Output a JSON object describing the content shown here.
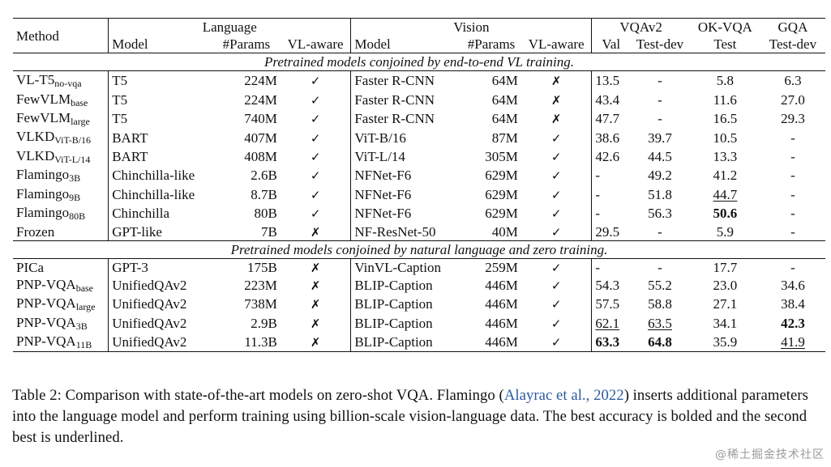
{
  "headers": {
    "method": "Method",
    "language": "Language",
    "vision": "Vision",
    "vqav2": "VQAv2",
    "okvqa": "OK-VQA",
    "gqa": "GQA",
    "lang_model": "Model",
    "lang_params": "#Params",
    "lang_vl": "VL-aware",
    "vis_model": "Model",
    "vis_params": "#Params",
    "vis_vl": "VL-aware",
    "vqav2_val": "Val",
    "vqav2_testdev": "Test-dev",
    "okvqa_test": "Test",
    "gqa_testdev": "Test-dev"
  },
  "sections": [
    {
      "title": "Pretrained models conjoined by end-to-end VL training.",
      "rows": [
        {
          "method": "VL-T5",
          "method_sub": "no-vqa",
          "lang_model": "T5",
          "lang_params": "224M",
          "lang_vl": "✓",
          "vis_model": "Faster R-CNN",
          "vis_params": "64M",
          "vis_vl": "✗",
          "vqav2_val": "13.5",
          "vqav2_testdev": "-",
          "okvqa": "5.8",
          "gqa": "6.3"
        },
        {
          "method": "FewVLM",
          "method_sub": "base",
          "lang_model": "T5",
          "lang_params": "224M",
          "lang_vl": "✓",
          "vis_model": "Faster R-CNN",
          "vis_params": "64M",
          "vis_vl": "✗",
          "vqav2_val": "43.4",
          "vqav2_testdev": "-",
          "okvqa": "11.6",
          "gqa": "27.0"
        },
        {
          "method": "FewVLM",
          "method_sub": "large",
          "lang_model": "T5",
          "lang_params": "740M",
          "lang_vl": "✓",
          "vis_model": "Faster R-CNN",
          "vis_params": "64M",
          "vis_vl": "✗",
          "vqav2_val": "47.7",
          "vqav2_testdev": "-",
          "okvqa": "16.5",
          "gqa": "29.3"
        },
        {
          "method": "VLKD",
          "method_sub": "ViT-B/16",
          "lang_model": "BART",
          "lang_params": "407M",
          "lang_vl": "✓",
          "vis_model": "ViT-B/16",
          "vis_params": "87M",
          "vis_vl": "✓",
          "vqav2_val": "38.6",
          "vqav2_testdev": "39.7",
          "okvqa": "10.5",
          "gqa": "-"
        },
        {
          "method": "VLKD",
          "method_sub": "ViT-L/14",
          "lang_model": "BART",
          "lang_params": "408M",
          "lang_vl": "✓",
          "vis_model": "ViT-L/14",
          "vis_params": "305M",
          "vis_vl": "✓",
          "vqav2_val": "42.6",
          "vqav2_testdev": "44.5",
          "okvqa": "13.3",
          "gqa": "-"
        },
        {
          "method": "Flamingo",
          "method_sub": "3B",
          "lang_model": "Chinchilla-like",
          "lang_params": "2.6B",
          "lang_vl": "✓",
          "vis_model": "NFNet-F6",
          "vis_params": "629M",
          "vis_vl": "✓",
          "vqav2_val": "-",
          "vqav2_testdev": "49.2",
          "okvqa": "41.2",
          "gqa": "-"
        },
        {
          "method": "Flamingo",
          "method_sub": "9B",
          "lang_model": "Chinchilla-like",
          "lang_params": "8.7B",
          "lang_vl": "✓",
          "vis_model": "NFNet-F6",
          "vis_params": "629M",
          "vis_vl": "✓",
          "vqav2_val": "-",
          "vqav2_testdev": "51.8",
          "okvqa": "44.7",
          "okvqa_style": "underline",
          "gqa": "-"
        },
        {
          "method": "Flamingo",
          "method_sub": "80B",
          "lang_model": "Chinchilla",
          "lang_params": "80B",
          "lang_vl": "✓",
          "vis_model": "NFNet-F6",
          "vis_params": "629M",
          "vis_vl": "✓",
          "vqav2_val": "-",
          "vqav2_testdev": "56.3",
          "okvqa": "50.6",
          "okvqa_style": "bold",
          "gqa": "-"
        },
        {
          "method": "Frozen",
          "method_sub": "",
          "lang_model": "GPT-like",
          "lang_params": "7B",
          "lang_vl": "✗",
          "vis_model": "NF-ResNet-50",
          "vis_params": "40M",
          "vis_vl": "✓",
          "vqav2_val": "29.5",
          "vqav2_testdev": "-",
          "okvqa": "5.9",
          "gqa": "-"
        }
      ]
    },
    {
      "title": "Pretrained models conjoined by natural language and zero training.",
      "rows": [
        {
          "method": "PICa",
          "method_sub": "",
          "lang_model": "GPT-3",
          "lang_params": "175B",
          "lang_vl": "✗",
          "vis_model": "VinVL-Caption",
          "vis_params": "259M",
          "vis_vl": "✓",
          "vqav2_val": "-",
          "vqav2_testdev": "-",
          "okvqa": "17.7",
          "gqa": "-"
        },
        {
          "method": "PNP-VQA",
          "method_sub": "base",
          "lang_model": "UnifiedQAv2",
          "lang_params": "223M",
          "lang_vl": "✗",
          "vis_model": "BLIP-Caption",
          "vis_params": "446M",
          "vis_vl": "✓",
          "vqav2_val": "54.3",
          "vqav2_testdev": "55.2",
          "okvqa": "23.0",
          "gqa": "34.6"
        },
        {
          "method": "PNP-VQA",
          "method_sub": "large",
          "lang_model": "UnifiedQAv2",
          "lang_params": "738M",
          "lang_vl": "✗",
          "vis_model": "BLIP-Caption",
          "vis_params": "446M",
          "vis_vl": "✓",
          "vqav2_val": "57.5",
          "vqav2_testdev": "58.8",
          "okvqa": "27.1",
          "gqa": "38.4"
        },
        {
          "method": "PNP-VQA",
          "method_sub": "3B",
          "lang_model": "UnifiedQAv2",
          "lang_params": "2.9B",
          "lang_vl": "✗",
          "vis_model": "BLIP-Caption",
          "vis_params": "446M",
          "vis_vl": "✓",
          "vqav2_val": "62.1",
          "vqav2_val_style": "underline",
          "vqav2_testdev": "63.5",
          "vqav2_testdev_style": "underline",
          "okvqa": "34.1",
          "gqa": "42.3",
          "gqa_style": "bold"
        },
        {
          "method": "PNP-VQA",
          "method_sub": "11B",
          "lang_model": "UnifiedQAv2",
          "lang_params": "11.3B",
          "lang_vl": "✗",
          "vis_model": "BLIP-Caption",
          "vis_params": "446M",
          "vis_vl": "✓",
          "vqav2_val": "63.3",
          "vqav2_val_style": "bold",
          "vqav2_testdev": "64.8",
          "vqav2_testdev_style": "bold",
          "okvqa": "35.9",
          "gqa": "41.9",
          "gqa_style": "underline"
        }
      ]
    }
  ],
  "caption": {
    "part1": "Table 2:  Comparison with state-of-the-art models on zero-shot VQA. Flamingo (",
    "citation": "Alayrac et al., 2022",
    "part2": ") inserts additional parameters into the language model and perform training using billion-scale vision-language data. The best accuracy is bolded and the second best is underlined."
  },
  "watermark": "@稀土掘金技术社区"
}
